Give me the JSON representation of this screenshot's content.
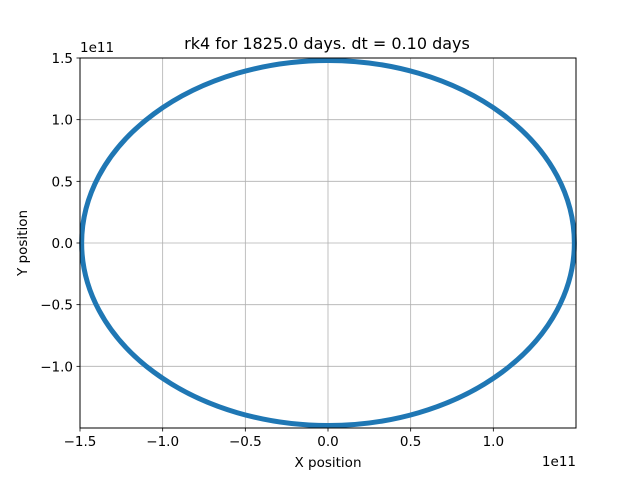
{
  "chart_data": {
    "type": "line",
    "title": "rk4 for 1825.0 days. dt = 0.10 days",
    "xlabel": "X position",
    "ylabel": "Y position",
    "x_offset_label": "1e11",
    "y_offset_label": "1e11",
    "xlim": [
      -1.5,
      1.5
    ],
    "ylim": [
      -1.5,
      1.5
    ],
    "xticks": [
      -1.5,
      -1.0,
      -0.5,
      0.0,
      0.5,
      1.0
    ],
    "xtick_labels": [
      "−1.5",
      "−1.0",
      "−0.5",
      "0.0",
      "0.5",
      "1.0"
    ],
    "yticks": [
      1.5,
      1.0,
      0.5,
      0.0,
      -0.5,
      -1.0
    ],
    "ytick_labels": [
      "1.5",
      "1.0",
      "0.5",
      "0.0",
      "−0.5",
      "−1.0"
    ],
    "grid": true,
    "series": [
      {
        "color": "#1f77b4",
        "shape": "ellipse",
        "center": [
          0.0,
          0.0
        ],
        "semi_axis_x": 1.49,
        "semi_axis_y": 1.48
      }
    ]
  }
}
